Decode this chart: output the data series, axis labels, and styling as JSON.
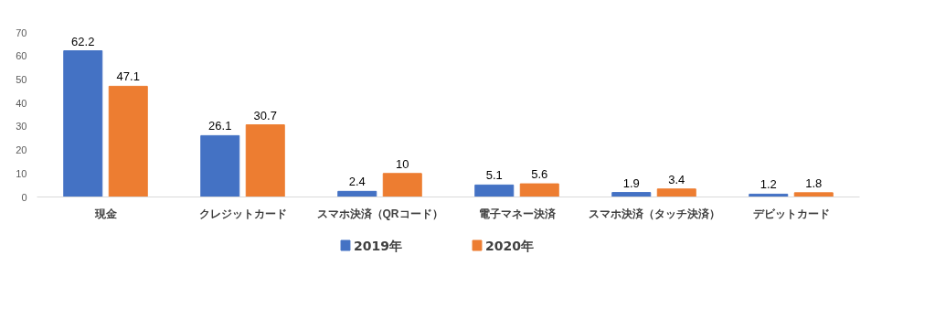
{
  "chart_data": {
    "type": "bar",
    "categories": [
      "現金",
      "クレジットカード",
      "スマホ決済（QRコード）",
      "電子マネー決済",
      "スマホ決済（タッチ決済）",
      "デビットカード"
    ],
    "series": [
      {
        "name": "2019年",
        "color": "#4472c4",
        "values": [
          62.2,
          26.1,
          2.4,
          5.1,
          1.9,
          1.2
        ]
      },
      {
        "name": "2020年",
        "color": "#ed7d31",
        "values": [
          47.1,
          30.7,
          10,
          5.6,
          3.4,
          1.8
        ]
      }
    ],
    "ylim": [
      0,
      70
    ],
    "yticks": [
      0,
      10,
      20,
      30,
      40,
      50,
      60,
      70
    ],
    "grid": false,
    "legend": "bottom",
    "data_labels": true
  }
}
